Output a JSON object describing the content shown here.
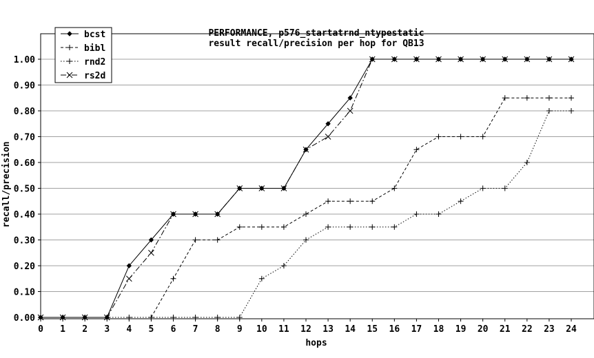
{
  "chart_data": {
    "type": "line",
    "title": "PERFORMANCE, p576_startatrnd_ntypestatic",
    "subtitle": "result recall/precision per hop for QB13",
    "xlabel": "hops",
    "ylabel": "recall/precision",
    "x": [
      0,
      1,
      2,
      3,
      4,
      5,
      6,
      7,
      8,
      9,
      10,
      11,
      12,
      13,
      14,
      15,
      16,
      17,
      18,
      19,
      20,
      21,
      22,
      23,
      24
    ],
    "xticks": [
      "0",
      "1",
      "2",
      "3",
      "4",
      "5",
      "6",
      "7",
      "8",
      "9",
      "10",
      "11",
      "12",
      "13",
      "14",
      "15",
      "16",
      "17",
      "18",
      "19",
      "20",
      "21",
      "22",
      "23",
      "24"
    ],
    "ylim": [
      0,
      1.0
    ],
    "yticks": [
      "0.00",
      "0.10",
      "0.20",
      "0.30",
      "0.40",
      "0.50",
      "0.60",
      "0.70",
      "0.80",
      "0.90",
      "1.00"
    ],
    "grid": "horizontal",
    "legend_position": "top-left",
    "series": [
      {
        "name": "bcst",
        "style": "solid",
        "marker": "diamond",
        "x": [
          0,
          1,
          2,
          3,
          4,
          5,
          6,
          7,
          8,
          9,
          10,
          11,
          12,
          13,
          14,
          15,
          16,
          17,
          18,
          19,
          20,
          21,
          22,
          23,
          24
        ],
        "values": [
          0,
          0,
          0,
          0,
          0.2,
          0.3,
          0.4,
          0.4,
          0.4,
          0.5,
          0.5,
          0.5,
          0.65,
          0.75,
          0.85,
          1.0,
          1.0,
          1.0,
          1.0,
          1.0,
          1.0,
          1.0,
          1.0,
          1.0,
          1.0
        ]
      },
      {
        "name": "bibl",
        "style": "dashed",
        "marker": "plus",
        "x": [
          5,
          6,
          7,
          8,
          9,
          10,
          11,
          12,
          13,
          14,
          15,
          16,
          17,
          18,
          19,
          20,
          21,
          22,
          23,
          24
        ],
        "values": [
          0,
          0.15,
          0.3,
          0.3,
          0.35,
          0.35,
          0.35,
          0.4,
          0.45,
          0.45,
          0.45,
          0.5,
          0.65,
          0.7,
          0.7,
          0.7,
          0.85,
          0.85,
          0.85,
          0.85
        ]
      },
      {
        "name": "rnd2",
        "style": "dotted",
        "marker": "plus",
        "x": [
          0,
          1,
          2,
          3,
          4,
          5,
          6,
          7,
          8,
          9,
          10,
          11,
          12,
          13,
          14,
          15,
          16,
          17,
          18,
          19,
          20,
          21,
          22,
          23,
          24
        ],
        "values": [
          0,
          0,
          0,
          0,
          0,
          0,
          0,
          0,
          0,
          0,
          0.15,
          0.2,
          0.3,
          0.35,
          0.35,
          0.35,
          0.35,
          0.4,
          0.4,
          0.45,
          0.5,
          0.5,
          0.6,
          0.8,
          0.8
        ]
      },
      {
        "name": "rs2d",
        "style": "dashdot",
        "marker": "cross",
        "x": [
          0,
          1,
          2,
          3,
          4,
          5,
          6,
          7,
          8,
          9,
          10,
          11,
          12,
          13,
          14,
          15,
          16,
          17,
          18,
          19,
          20,
          21,
          22,
          23,
          24
        ],
        "values": [
          0,
          0,
          0,
          0,
          0.15,
          0.25,
          0.4,
          0.4,
          0.4,
          0.5,
          0.5,
          0.5,
          0.65,
          0.7,
          0.8,
          1.0,
          1.0,
          1.0,
          1.0,
          1.0,
          1.0,
          1.0,
          1.0,
          1.0,
          1.0
        ]
      }
    ]
  }
}
